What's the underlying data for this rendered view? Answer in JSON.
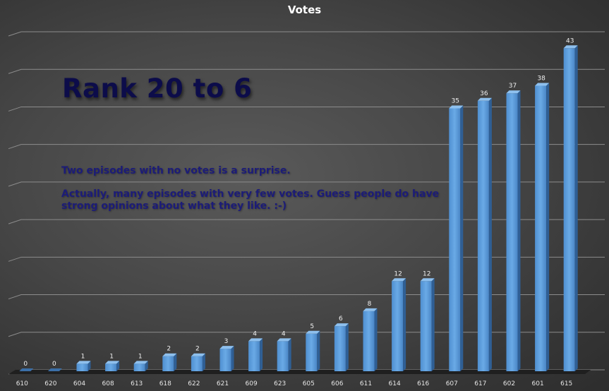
{
  "chart_data": {
    "type": "bar",
    "title": "Votes",
    "categories": [
      "610",
      "620",
      "604",
      "608",
      "613",
      "618",
      "622",
      "621",
      "609",
      "623",
      "605",
      "606",
      "611",
      "614",
      "616",
      "607",
      "617",
      "602",
      "601",
      "615"
    ],
    "values": [
      0,
      0,
      1,
      1,
      1,
      2,
      2,
      3,
      4,
      4,
      5,
      6,
      8,
      12,
      12,
      35,
      36,
      37,
      38,
      43
    ],
    "ylim": [
      0,
      45
    ],
    "grid": true,
    "bar_color": "#5b9bd5"
  },
  "annotations": {
    "heading": "Rank 20 to 6",
    "note_line1": "Two episodes with no votes is a surprise.",
    "note_line2": "Actually, many episodes with very few votes. Guess people do have strong opinions about what they like. :-)"
  }
}
